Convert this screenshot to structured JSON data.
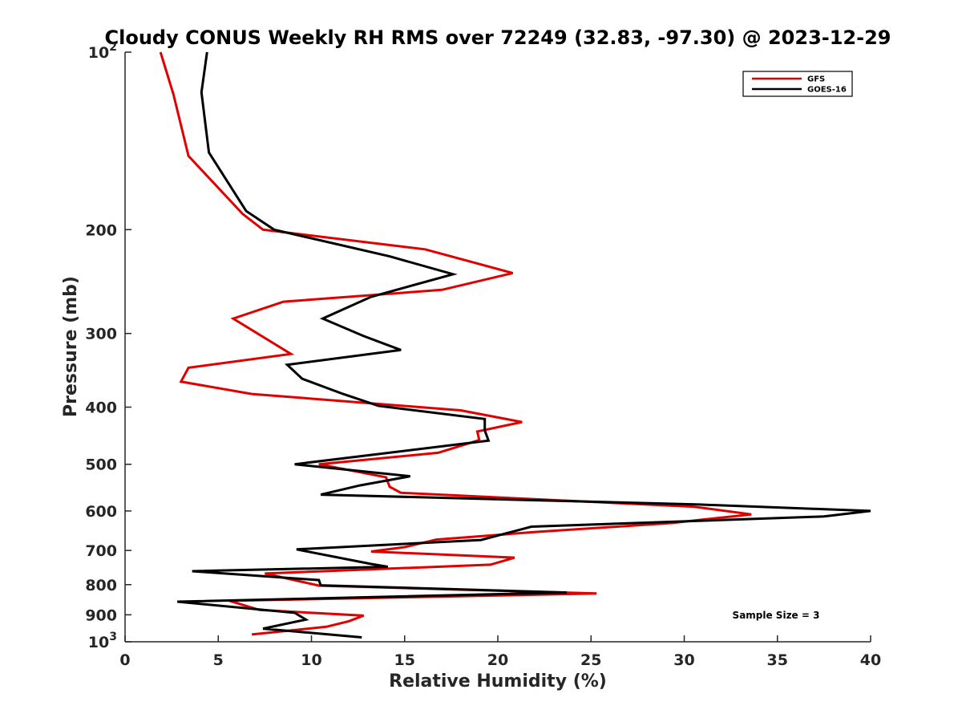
{
  "chart_data": {
    "type": "line",
    "title": "Cloudy CONUS Weekly RH RMS over 72249 (32.83, -97.30) @ 2023-12-29",
    "xlabel": "Relative Humidity (%)",
    "ylabel": "Pressure (mb)",
    "xlim": [
      0,
      40
    ],
    "ylim": [
      100,
      1000
    ],
    "yscale": "log",
    "y_reversed": true,
    "grid": false,
    "legend_position": "top-right",
    "x_ticks": [
      0,
      5,
      10,
      15,
      20,
      25,
      30,
      35,
      40
    ],
    "x_tick_labels": [
      "0",
      "5",
      "10",
      "15",
      "20",
      "25",
      "30",
      "35",
      "40"
    ],
    "y_ticks": [
      100,
      200,
      300,
      400,
      500,
      600,
      700,
      800,
      900,
      1000
    ],
    "y_tick_labels": [
      {
        "base": "10",
        "exp": "2"
      },
      {
        "base": "200",
        "exp": ""
      },
      {
        "base": "300",
        "exp": ""
      },
      {
        "base": "400",
        "exp": ""
      },
      {
        "base": "500",
        "exp": ""
      },
      {
        "base": "600",
        "exp": ""
      },
      {
        "base": "700",
        "exp": ""
      },
      {
        "base": "800",
        "exp": ""
      },
      {
        "base": "900",
        "exp": ""
      },
      {
        "base": "10",
        "exp": "3"
      }
    ],
    "series": [
      {
        "name": "GFS",
        "color": "#e00000",
        "x": [
          1.9,
          2.6,
          3.4,
          6.3,
          7.4,
          16.1,
          20.8,
          17.0,
          8.5,
          5.8,
          8.9,
          3.4,
          3.0,
          6.8,
          18.0,
          21.3,
          18.9,
          19.0,
          16.8,
          10.4,
          14.0,
          14.2,
          14.8,
          30.5,
          33.6,
          29.3,
          22.1,
          16.7,
          15.0,
          13.2,
          20.9,
          19.6,
          7.5,
          10.4,
          25.3,
          5.6,
          7.2,
          12.8,
          12.0,
          10.8,
          6.8
        ],
        "y": [
          100,
          118,
          150,
          188,
          200,
          216,
          237,
          253,
          265,
          283,
          325,
          343,
          362,
          380,
          405,
          424,
          440,
          455,
          478,
          500,
          526,
          546,
          559,
          590,
          608,
          629,
          651,
          671,
          691,
          703,
          720,
          740,
          766,
          803,
          828,
          852,
          883,
          903,
          923,
          943,
          972
        ]
      },
      {
        "name": "GOES-16",
        "color": "#000000",
        "x": [
          4.4,
          4.1,
          4.5,
          6.5,
          8.0,
          14.2,
          17.6,
          13.2,
          10.6,
          12.8,
          14.8,
          8.7,
          9.5,
          11.7,
          13.6,
          19.3,
          19.3,
          19.5,
          9.1,
          15.3,
          12.6,
          10.5,
          30.8,
          40.0,
          37.5,
          21.8,
          19.1,
          9.2,
          13.2,
          14.1,
          3.6,
          10.4,
          10.5,
          23.7,
          2.8,
          9.1,
          9.7,
          7.4,
          12.7
        ],
        "y": [
          100,
          117,
          148,
          186,
          200,
          222,
          238,
          260,
          283,
          303,
          320,
          339,
          358,
          380,
          398,
          419,
          438,
          456,
          500,
          524,
          543,
          563,
          585,
          600,
          613,
          638,
          672,
          697,
          738,
          746,
          759,
          786,
          802,
          825,
          855,
          893,
          917,
          950,
          983
        ]
      }
    ],
    "annotations": [
      "Sample Size = 3"
    ]
  }
}
